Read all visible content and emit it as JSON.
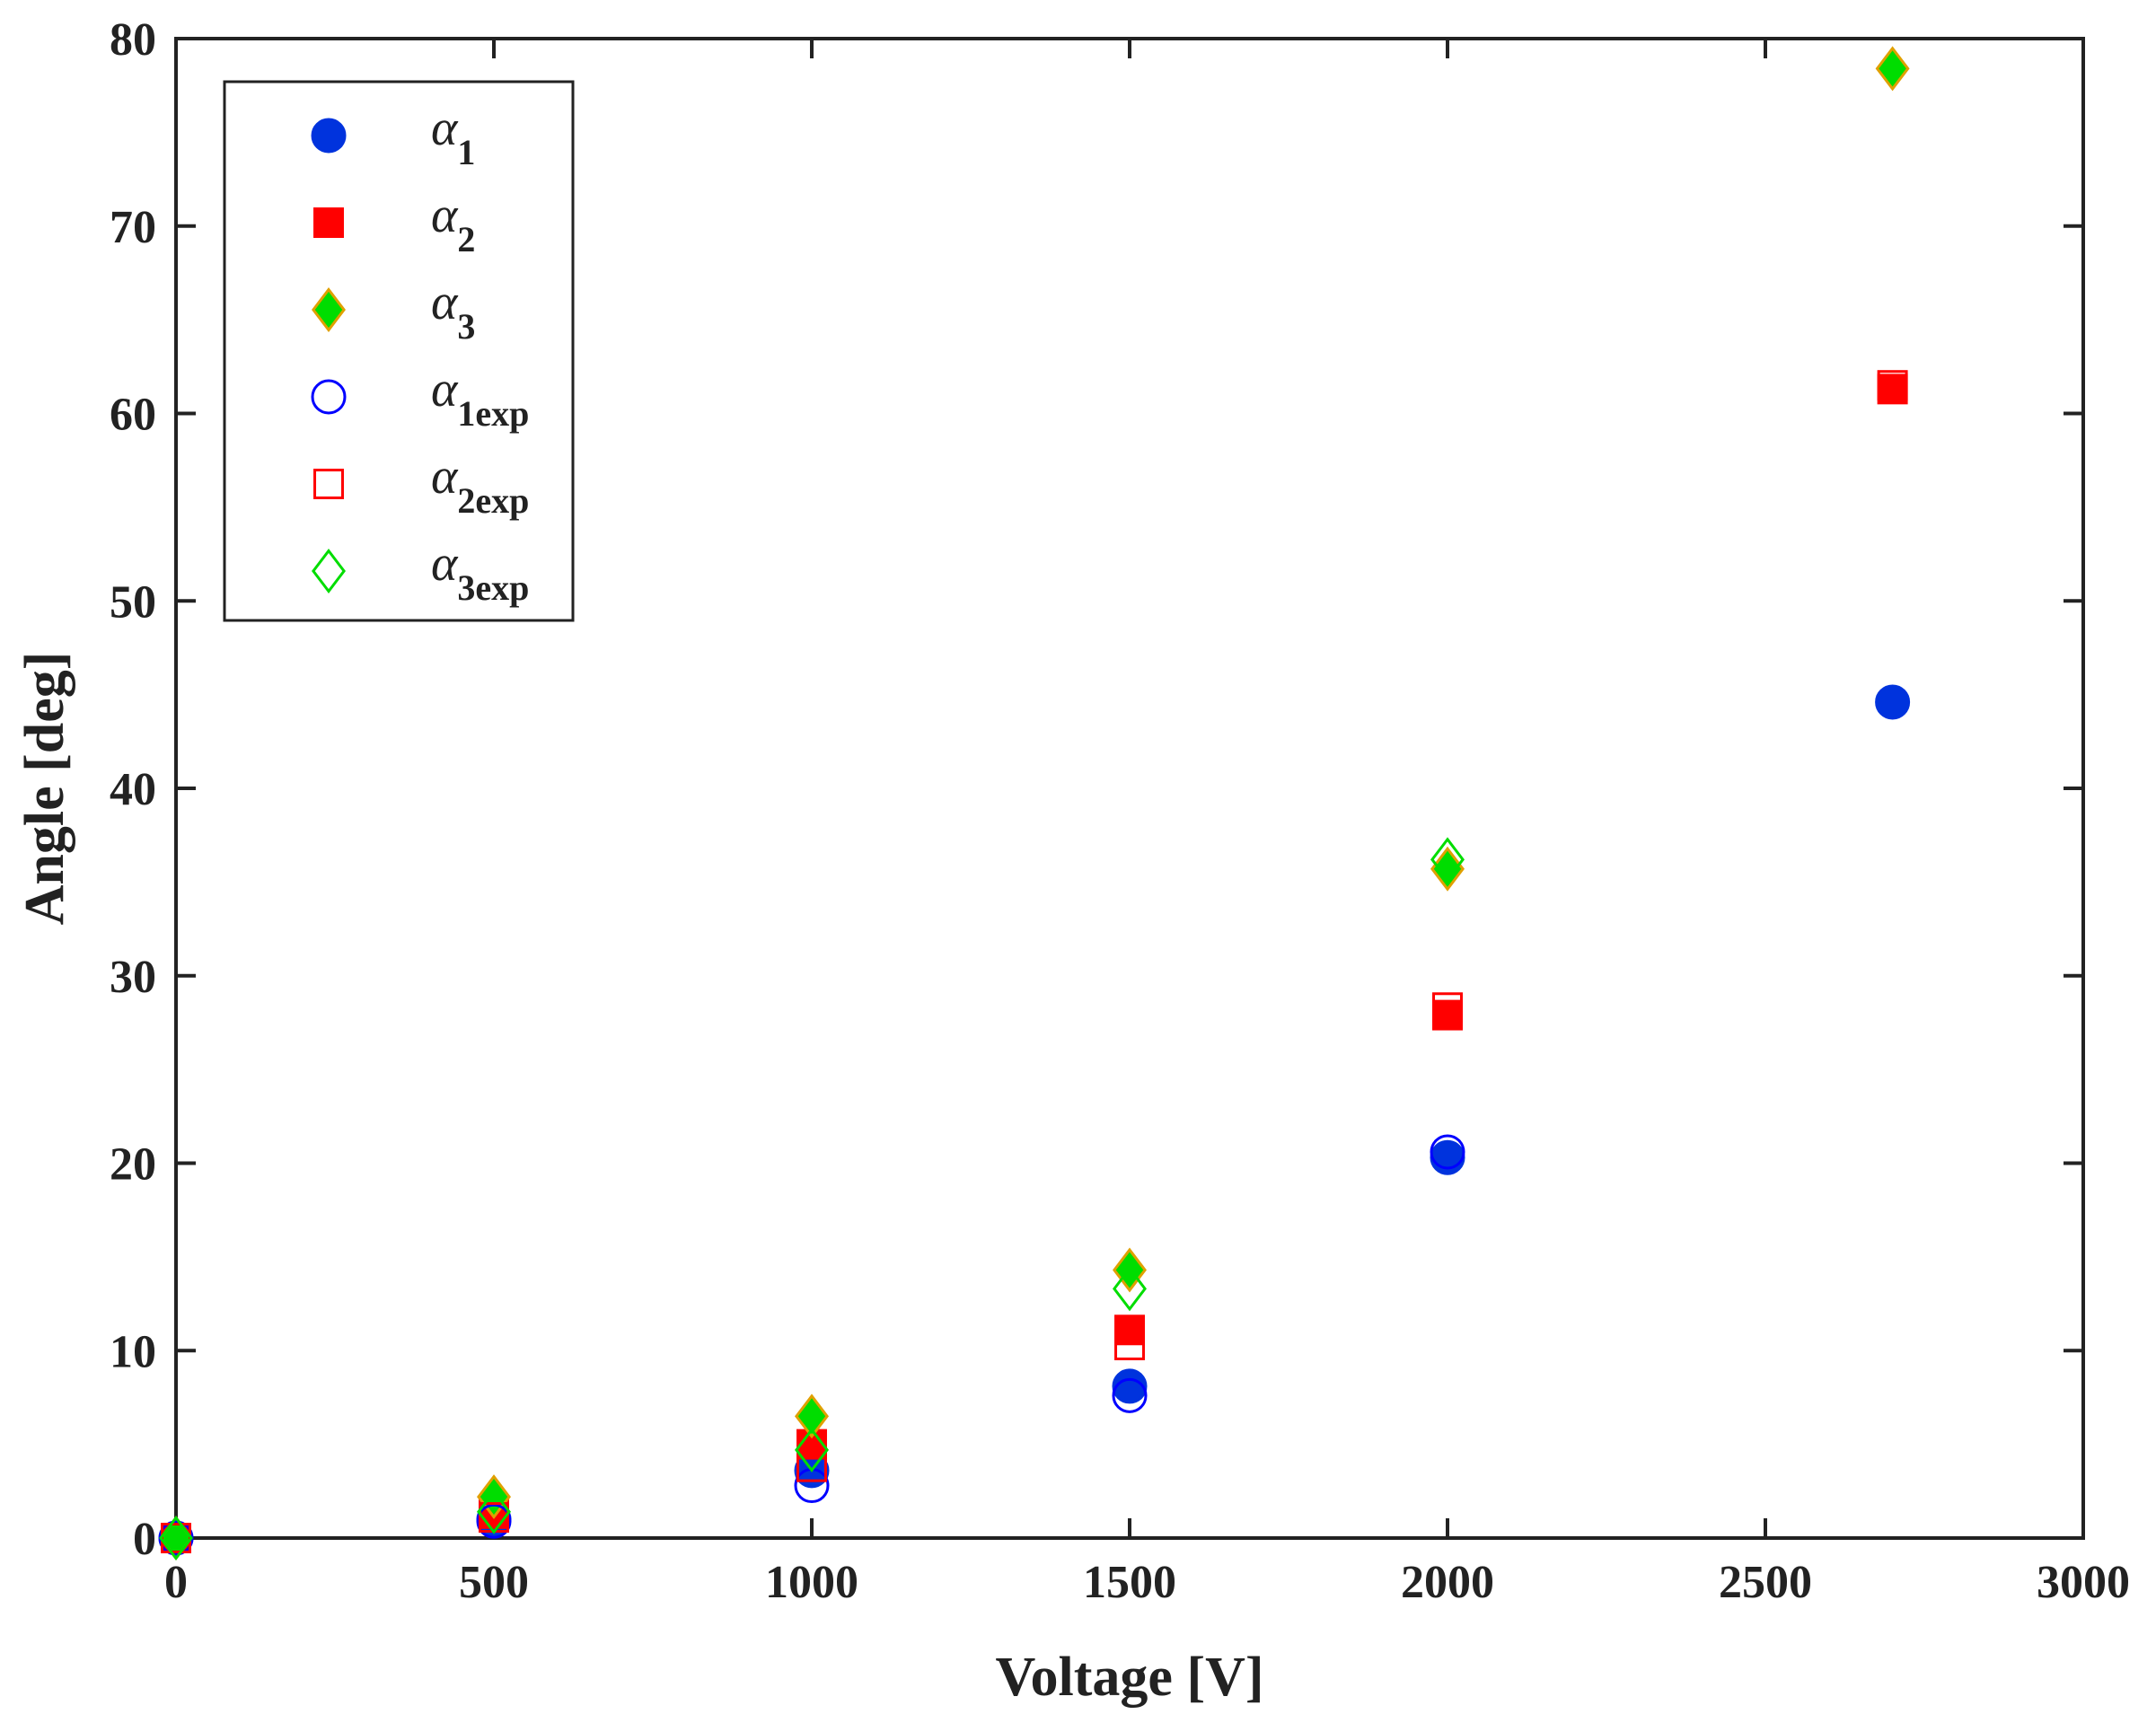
{
  "chart_data": {
    "type": "scatter",
    "title": "",
    "xlabel": "Voltage [V]",
    "ylabel": "Angle [deg]",
    "xlim": [
      0,
      3000
    ],
    "ylim": [
      0,
      80
    ],
    "xticks": [
      0,
      500,
      1000,
      1500,
      2000,
      2500,
      3000
    ],
    "yticks": [
      0,
      10,
      20,
      30,
      40,
      50,
      60,
      70,
      80
    ],
    "grid": false,
    "legend_position": "top-left",
    "series": [
      {
        "id": "a1",
        "symbol": "α",
        "subscript": "1",
        "marker": "circle",
        "filled": true,
        "color": "#0033dd",
        "x": [
          0,
          500,
          1000,
          1500,
          2000,
          2700
        ],
        "y": [
          0,
          1.0,
          3.6,
          8.1,
          20.3,
          44.6
        ]
      },
      {
        "id": "a2",
        "symbol": "α",
        "subscript": "2",
        "marker": "square",
        "filled": true,
        "color": "#ff0000",
        "x": [
          0,
          500,
          1000,
          1500,
          2000,
          2700
        ],
        "y": [
          0,
          1.3,
          5.0,
          11.1,
          27.9,
          61.3
        ]
      },
      {
        "id": "a3",
        "symbol": "α",
        "subscript": "3",
        "marker": "diamond",
        "filled": true,
        "color": "#00dd00",
        "edge": "#e0a000",
        "x": [
          0,
          500,
          1000,
          1500,
          2000,
          2700
        ],
        "y": [
          0,
          2.2,
          6.5,
          14.3,
          35.7,
          78.4
        ]
      },
      {
        "id": "a1exp",
        "symbol": "α",
        "subscript": "1exp",
        "marker": "circle",
        "filled": false,
        "color": "#0000ff",
        "x": [
          0,
          500,
          1000,
          1500,
          2000
        ],
        "y": [
          0,
          0.9,
          2.8,
          7.6,
          20.6
        ]
      },
      {
        "id": "a2exp",
        "symbol": "α",
        "subscript": "2exp",
        "marker": "square",
        "filled": false,
        "color": "#ff0000",
        "x": [
          0,
          500,
          1000,
          1500,
          2000,
          2700
        ],
        "y": [
          0,
          1.1,
          3.8,
          10.3,
          28.3,
          61.5
        ]
      },
      {
        "id": "a3exp",
        "symbol": "α",
        "subscript": "3exp",
        "marker": "diamond",
        "filled": false,
        "color": "#00dd00",
        "x": [
          0,
          500,
          1000,
          1500,
          2000
        ],
        "y": [
          0,
          1.4,
          4.7,
          13.3,
          36.2
        ]
      }
    ]
  }
}
